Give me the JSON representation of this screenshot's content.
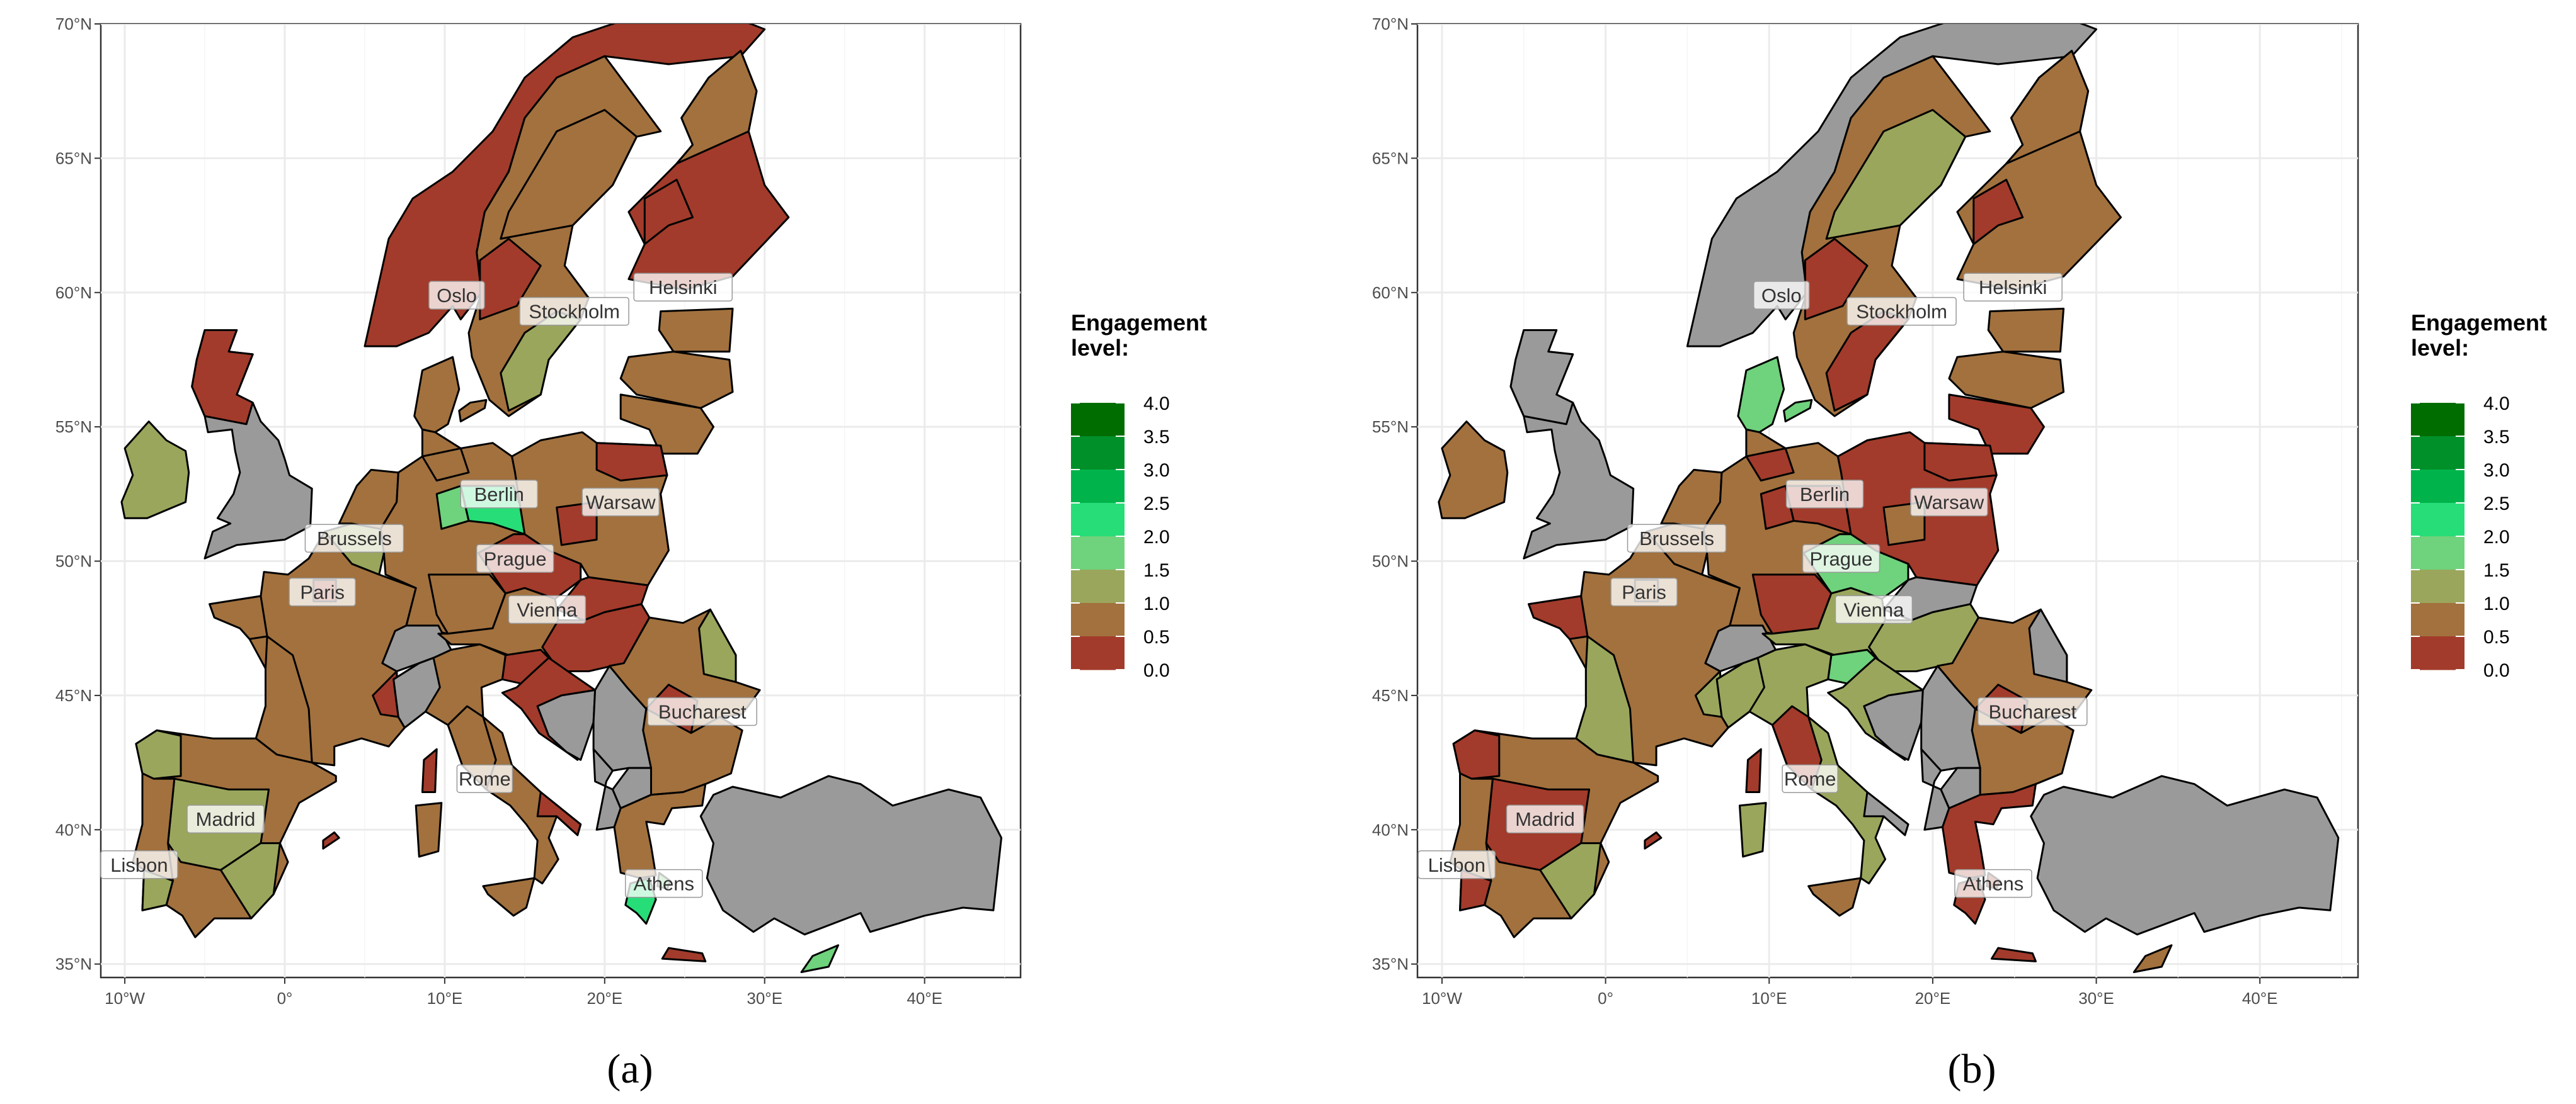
{
  "figure": {
    "panels": [
      {
        "caption": "(a)",
        "y_ticks": [
          "70°N",
          "65°N",
          "60°N",
          "55°N",
          "50°N",
          "45°N",
          "40°N",
          "35°N"
        ],
        "x_ticks": [
          "10°W",
          "0°",
          "10°E",
          "20°E",
          "30°E",
          "40°E"
        ],
        "legend": {
          "title_lines": [
            "Engagement",
            "level:"
          ],
          "colors": [
            "#006d00",
            "#00902a",
            "#00b34a",
            "#27dd77",
            "#6fd27c",
            "#9aa65c",
            "#a2713e",
            "#a23b2b"
          ],
          "labels": [
            "4.0",
            "3.5",
            "3.0",
            "2.5",
            "2.0",
            "1.5",
            "1.0",
            "0.5",
            "0.0"
          ]
        },
        "cities": [
          {
            "name": "Oslo",
            "lon": 10.75,
            "lat": 59.9
          },
          {
            "name": "Stockholm",
            "lon": 18.1,
            "lat": 59.3
          },
          {
            "name": "Helsinki",
            "lon": 24.9,
            "lat": 60.2
          },
          {
            "name": "Berlin",
            "lon": 13.4,
            "lat": 52.5
          },
          {
            "name": "Brussels",
            "lon": 4.35,
            "lat": 50.85
          },
          {
            "name": "Prague",
            "lon": 14.4,
            "lat": 50.1
          },
          {
            "name": "Warsaw",
            "lon": 21.0,
            "lat": 52.2
          },
          {
            "name": "Paris",
            "lon": 2.35,
            "lat": 48.85
          },
          {
            "name": "Vienna",
            "lon": 16.4,
            "lat": 48.2
          },
          {
            "name": "Bucharest",
            "lon": 26.1,
            "lat": 44.4
          },
          {
            "name": "Madrid",
            "lon": -3.7,
            "lat": 40.4
          },
          {
            "name": "Rome",
            "lon": 12.5,
            "lat": 41.9
          },
          {
            "name": "Athens",
            "lon": 23.7,
            "lat": 38.0
          },
          {
            "name": "Lisbon",
            "lon": -9.1,
            "lat": 38.7
          }
        ]
      },
      {
        "caption": "(b)",
        "y_ticks": [
          "70°N",
          "65°N",
          "60°N",
          "55°N",
          "50°N",
          "45°N",
          "40°N",
          "35°N"
        ],
        "x_ticks": [
          "10°W",
          "0°",
          "10°E",
          "20°E",
          "30°E",
          "40°E"
        ],
        "legend": {
          "title_lines": [
            "Engagement",
            "level:"
          ],
          "colors": [
            "#006d00",
            "#00902a",
            "#00b34a",
            "#27dd77",
            "#6fd27c",
            "#9aa65c",
            "#a2713e",
            "#a23b2b"
          ],
          "labels": [
            "4.0",
            "3.5",
            "3.0",
            "2.5",
            "2.0",
            "1.5",
            "1.0",
            "0.5",
            "0.0"
          ]
        },
        "cities": [
          {
            "name": "Oslo",
            "lon": 10.75,
            "lat": 59.9
          },
          {
            "name": "Stockholm",
            "lon": 18.1,
            "lat": 59.3
          },
          {
            "name": "Helsinki",
            "lon": 24.9,
            "lat": 60.2
          },
          {
            "name": "Berlin",
            "lon": 13.4,
            "lat": 52.5
          },
          {
            "name": "Brussels",
            "lon": 4.35,
            "lat": 50.85
          },
          {
            "name": "Prague",
            "lon": 14.4,
            "lat": 50.1
          },
          {
            "name": "Warsaw",
            "lon": 21.0,
            "lat": 52.2
          },
          {
            "name": "Paris",
            "lon": 2.35,
            "lat": 48.85
          },
          {
            "name": "Vienna",
            "lon": 16.4,
            "lat": 48.2
          },
          {
            "name": "Bucharest",
            "lon": 26.1,
            "lat": 44.4
          },
          {
            "name": "Madrid",
            "lon": -3.7,
            "lat": 40.4
          },
          {
            "name": "Rome",
            "lon": 12.5,
            "lat": 41.9
          },
          {
            "name": "Athens",
            "lon": 23.7,
            "lat": 38.0
          },
          {
            "name": "Lisbon",
            "lon": -9.1,
            "lat": 38.7
          }
        ]
      }
    ]
  },
  "colors": {
    "no_data": "#9a9a9a",
    "level_0": "#a23b2b",
    "level_05": "#a2713e",
    "level_1": "#9aa65c",
    "level_15": "#6fd27c",
    "level_2": "#27dd77",
    "panel_bg": "#ffffff",
    "grid": "#ebebeb"
  }
}
